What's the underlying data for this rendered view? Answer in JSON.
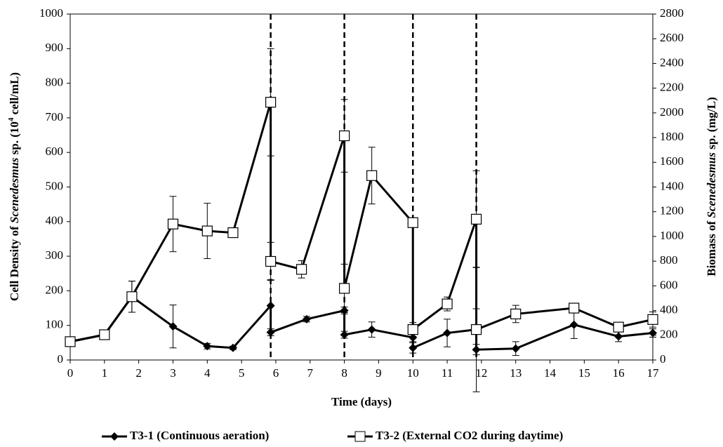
{
  "chart_data": {
    "type": "line",
    "xlabel": "Time (days)",
    "ylabel": [
      "Cell Density of ",
      "Scenedesmus",
      " sp. (10",
      "4",
      " cell/mL)"
    ],
    "y2label": [
      "Biomass of ",
      "Scenedesmus",
      " sp. (mg/L)"
    ],
    "xlim": [
      0,
      17
    ],
    "xticks": [
      0,
      1,
      2,
      3,
      4,
      5,
      6,
      7,
      8,
      9,
      10,
      11,
      12,
      13,
      14,
      15,
      16,
      17
    ],
    "ylim": [
      0,
      1000
    ],
    "yticks": [
      0,
      100,
      200,
      300,
      400,
      500,
      600,
      700,
      800,
      900,
      1000
    ],
    "y2lim": [
      0,
      2800
    ],
    "y2ticks": [
      0,
      200,
      400,
      600,
      800,
      1000,
      1200,
      1400,
      1600,
      1800,
      2000,
      2200,
      2400,
      2600,
      2800
    ],
    "vlines": [
      5.85,
      8,
      10,
      11.85
    ],
    "series": [
      {
        "name": "T3-1 (Continuous aeration)",
        "color": "#000000",
        "marker": "diamond",
        "x": [
          0,
          1,
          1.8,
          3,
          4,
          4.75,
          5.85,
          5.85,
          6.9,
          8,
          8,
          8.8,
          10,
          10,
          11,
          11.85,
          11.85,
          13,
          14.7,
          16,
          17
        ],
        "values": [
          53,
          73,
          183,
          97,
          40,
          35,
          157,
          80,
          118,
          143,
          73,
          88,
          65,
          35,
          78,
          88,
          30,
          33,
          102,
          68,
          78
        ],
        "errors": [
          5,
          5,
          45,
          62,
          8,
          5,
          75,
          10,
          8,
          10,
          10,
          22,
          12,
          15,
          40,
          60,
          15,
          20,
          40,
          15,
          12
        ]
      },
      {
        "name": "T3-2 (External CO2 during daytime)",
        "color": "#000000",
        "marker": "square",
        "x": [
          0,
          1,
          1.8,
          3,
          4,
          4.75,
          5.85,
          5.85,
          6.75,
          8,
          8,
          8.8,
          10,
          10,
          11,
          11.85,
          11.85,
          13,
          14.7,
          16,
          17
        ],
        "values": [
          53,
          73,
          183,
          393,
          373,
          368,
          745,
          285,
          262,
          648,
          207,
          533,
          397,
          88,
          162,
          407,
          88,
          133,
          150,
          95,
          117
        ],
        "errors": [
          5,
          5,
          45,
          80,
          80,
          5,
          155,
          55,
          25,
          105,
          70,
          82,
          10,
          20,
          20,
          140,
          180,
          25,
          5,
          8,
          22
        ]
      }
    ]
  }
}
